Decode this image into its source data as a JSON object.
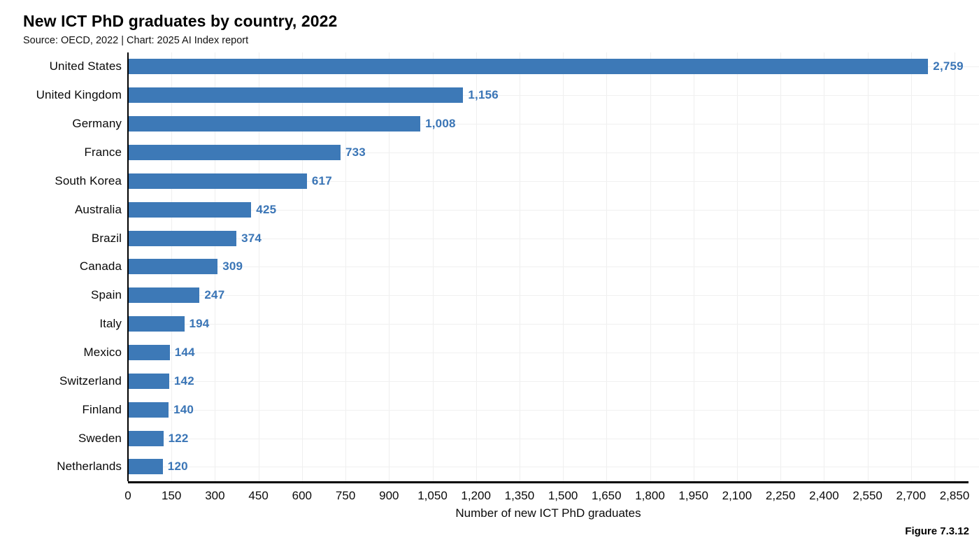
{
  "header": {
    "title": "New ICT PhD graduates by country, 2022",
    "subtitle": "Source: OECD, 2022 | Chart: 2025 AI Index report"
  },
  "figure_label": "Figure 7.3.12",
  "chart_data": {
    "type": "bar",
    "orientation": "horizontal",
    "title": "New ICT PhD graduates by country, 2022",
    "subtitle": "Source: OECD, 2022 | Chart: 2025 AI Index report",
    "categories": [
      "United States",
      "United Kingdom",
      "Germany",
      "France",
      "South Korea",
      "Australia",
      "Brazil",
      "Canada",
      "Spain",
      "Italy",
      "Mexico",
      "Switzerland",
      "Finland",
      "Sweden",
      "Netherlands"
    ],
    "values": [
      2759,
      1156,
      1008,
      733,
      617,
      425,
      374,
      309,
      247,
      194,
      144,
      142,
      140,
      122,
      120
    ],
    "value_labels": [
      "2,759",
      "1,156",
      "1,008",
      "733",
      "617",
      "425",
      "374",
      "309",
      "247",
      "194",
      "144",
      "142",
      "140",
      "122",
      "120"
    ],
    "xlabel": "Number of new ICT PhD graduates",
    "ylabel": "",
    "xlim": [
      0,
      2850
    ],
    "xticks": [
      0,
      150,
      300,
      450,
      600,
      750,
      900,
      1050,
      1200,
      1350,
      1500,
      1650,
      1800,
      1950,
      2100,
      2250,
      2400,
      2550,
      2700,
      2850
    ],
    "xtick_labels": [
      "0",
      "150",
      "300",
      "450",
      "600",
      "750",
      "900",
      "1,050",
      "1,200",
      "1,350",
      "1,500",
      "1,650",
      "1,800",
      "1,950",
      "2,100",
      "2,250",
      "2,400",
      "2,550",
      "2,700",
      "2,850"
    ],
    "grid": true,
    "legend_position": "none",
    "colors": {
      "bar": "#3d79b7",
      "value_label": "#3a75b6",
      "gridline": "#efefef",
      "axis": "#000000"
    }
  }
}
